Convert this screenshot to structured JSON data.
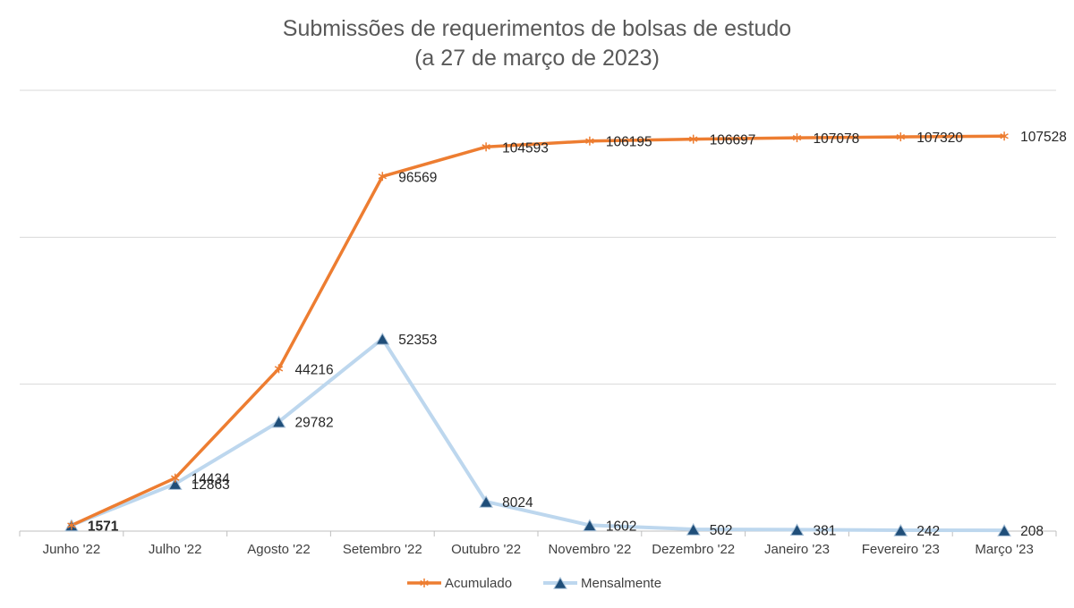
{
  "chart_data": {
    "type": "line",
    "title": "Submissões de requerimentos de bolsas de estudo",
    "subtitle": "(a 27 de março de 2023)",
    "categories": [
      "Junho '22",
      "Julho '22",
      "Agosto '22",
      "Setembro '22",
      "Outubro '22",
      "Novembro '22",
      "Dezembro '22",
      "Janeiro '23",
      "Fevereiro '23",
      "Março '23"
    ],
    "series": [
      {
        "name": "Acumulado",
        "color": "#ED7D31",
        "marker": "asterisk",
        "values": [
          1571,
          14434,
          44216,
          96569,
          104593,
          106195,
          106697,
          107078,
          107320,
          107528
        ],
        "labels": [
          "",
          "14434",
          "44216",
          "96569",
          "104593",
          "106195",
          "106697",
          "107078",
          "107320",
          "107528"
        ]
      },
      {
        "name": "Mensalmente",
        "color": "#BDD7EE",
        "marker": "triangle",
        "marker_color": "#1F4E79",
        "values": [
          1571,
          12863,
          29782,
          52353,
          8024,
          1602,
          502,
          381,
          242,
          208
        ],
        "labels": [
          "1571",
          "12863",
          "29782",
          "52353",
          "8024",
          "1602",
          "502",
          "381",
          "242",
          "208"
        ]
      }
    ],
    "ylim": [
      0,
      120000
    ],
    "y_gridlines": [
      0,
      40000,
      80000,
      120000
    ],
    "y_tick_labels_visible": false,
    "grid": true,
    "legend": "bottom"
  }
}
